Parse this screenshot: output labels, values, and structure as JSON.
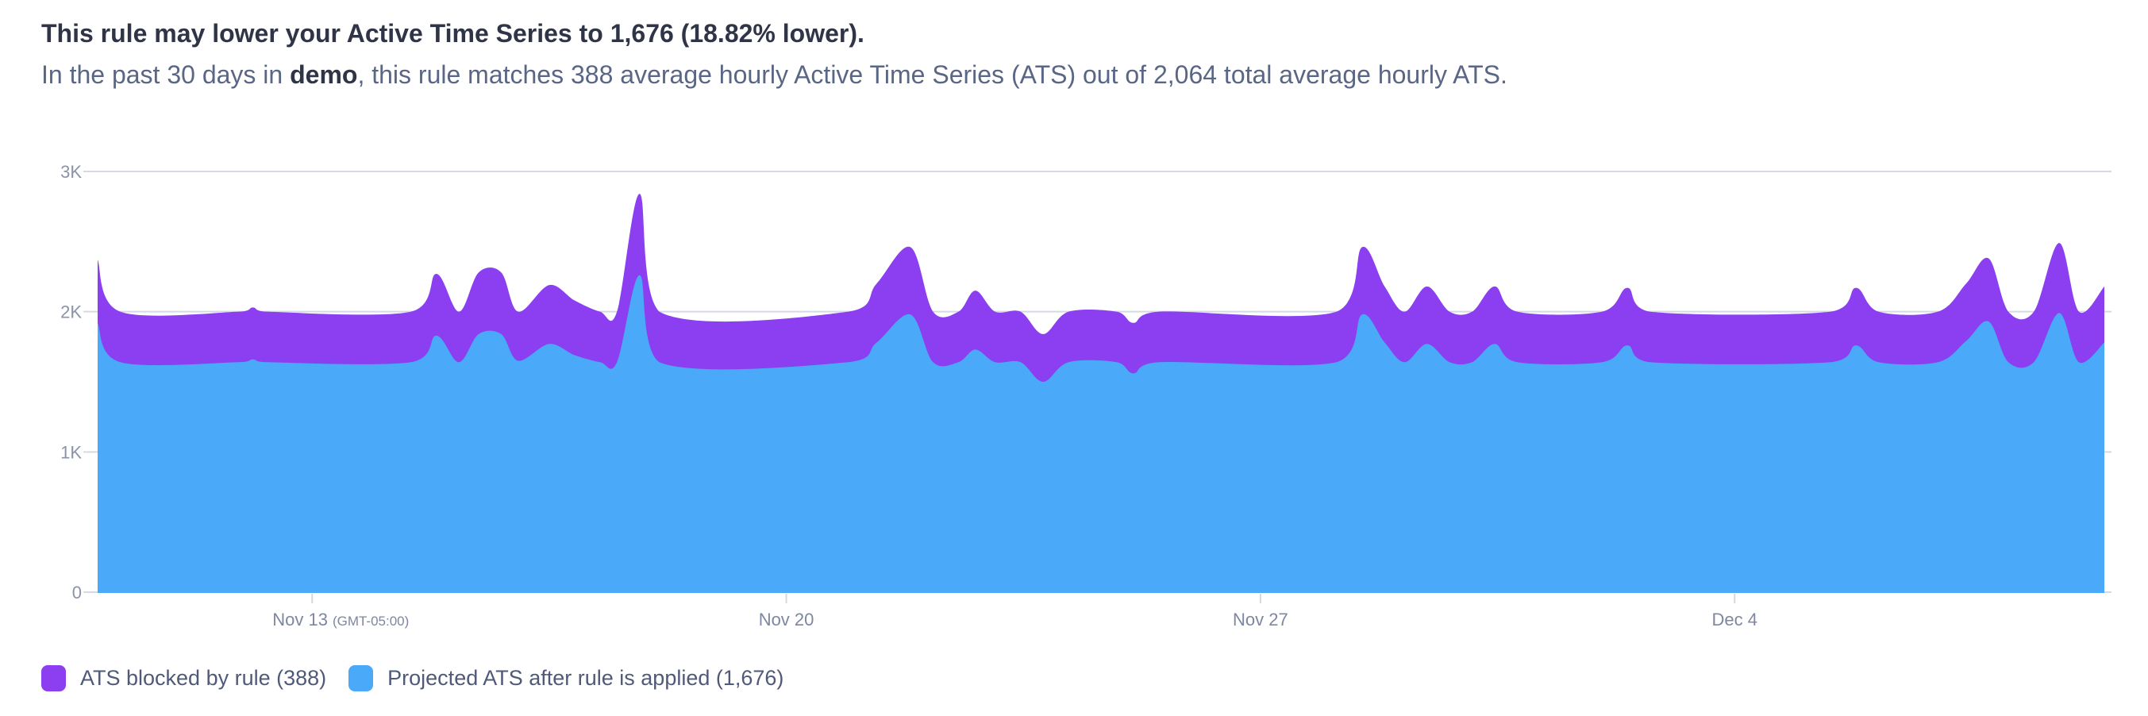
{
  "header": {
    "title": "This rule may lower your Active Time Series to 1,676 (18.82% lower).",
    "subtitle_prefix": "In the past 30 days in ",
    "subtitle_bold": "demo",
    "subtitle_suffix": ", this rule matches 388 average hourly Active Time Series (ATS) out of 2,064 total average hourly ATS."
  },
  "chart_data": {
    "type": "area",
    "stacked": true,
    "title": "",
    "xlabel": "",
    "ylabel": "",
    "ylim": [
      0,
      3000
    ],
    "xlim": [
      "Nov 9 20:00",
      "Dec 9 11:00"
    ],
    "grid": "horizontal",
    "y_ticks": [
      "0",
      "1K",
      "2K",
      "3K"
    ],
    "y_tick_values": [
      0,
      1000,
      2000,
      3000
    ],
    "x_ticks": [
      {
        "label": "Nov 13",
        "suffix": "(GMT-05:00)",
        "at": "Nov 13 00:00"
      },
      {
        "label": "Nov 20",
        "suffix": "",
        "at": "Nov 20 00:00"
      },
      {
        "label": "Nov 27",
        "suffix": "",
        "at": "Nov 27 00:00"
      },
      {
        "label": "Dec 4",
        "suffix": "",
        "at": "Dec 4 00:00"
      }
    ],
    "x": [
      "Nov 9 20:00",
      "Nov 10 04:00",
      "Nov 11 22:00",
      "Nov 12 03:00",
      "Nov 12 08:00",
      "Nov 14 11:00",
      "Nov 14 20:00",
      "Nov 15 04:00",
      "Nov 15 11:00",
      "Nov 15 19:00",
      "Nov 16 01:00",
      "Nov 16 12:00",
      "Nov 16 21:00",
      "Nov 17 06:00",
      "Nov 17 12:00",
      "Nov 17 20:00",
      "Nov 18 03:00",
      "Nov 20 22:00",
      "Nov 21 08:00",
      "Nov 21 20:00",
      "Nov 22 04:00",
      "Nov 22 13:00",
      "Nov 22 19:00",
      "Nov 23 02:00",
      "Nov 23 11:00",
      "Nov 23 19:00",
      "Nov 24 04:00",
      "Nov 24 21:00",
      "Nov 25 03:00",
      "Nov 25 12:00",
      "Nov 28 03:00",
      "Nov 28 12:00",
      "Nov 28 20:00",
      "Nov 29 03:00",
      "Nov 29 11:00",
      "Nov 29 19:00",
      "Nov 30 03:00",
      "Nov 30 11:00",
      "Nov 30 19:00",
      "Dec 2 01:00",
      "Dec 2 10:00",
      "Dec 2 18:00",
      "Dec 5 10:00",
      "Dec 5 19:00",
      "Dec 6 03:00",
      "Dec 7 00:00",
      "Dec 7 10:00",
      "Dec 7 18:00",
      "Dec 8 01:00",
      "Dec 8 10:00",
      "Dec 8 19:00",
      "Dec 9 02:00",
      "Dec 9 11:00"
    ],
    "series": [
      {
        "name": "Projected ATS after rule is applied",
        "legend_label": "Projected ATS after rule is applied (1,676)",
        "color": "#4aa9f8",
        "values": [
          1920,
          1640,
          1640,
          1660,
          1640,
          1640,
          1830,
          1640,
          1840,
          1840,
          1650,
          1770,
          1690,
          1640,
          1640,
          2260,
          1640,
          1640,
          1780,
          1980,
          1640,
          1640,
          1730,
          1640,
          1640,
          1500,
          1640,
          1640,
          1560,
          1640,
          1640,
          1980,
          1780,
          1640,
          1770,
          1640,
          1640,
          1770,
          1640,
          1640,
          1760,
          1640,
          1640,
          1760,
          1640,
          1640,
          1790,
          1930,
          1640,
          1640,
          1990,
          1640,
          1780
        ]
      },
      {
        "name": "ATS blocked by rule",
        "legend_label": "ATS blocked by rule (388)",
        "color": "#8b3ff0",
        "values": [
          450,
          360,
          360,
          370,
          360,
          360,
          440,
          360,
          440,
          440,
          350,
          420,
          390,
          360,
          360,
          580,
          360,
          360,
          420,
          480,
          360,
          360,
          420,
          360,
          360,
          340,
          360,
          360,
          360,
          360,
          360,
          480,
          400,
          360,
          410,
          360,
          360,
          410,
          360,
          360,
          410,
          360,
          360,
          410,
          360,
          360,
          410,
          450,
          360,
          360,
          500,
          360,
          400
        ]
      }
    ]
  },
  "legend": {
    "items": [
      {
        "label": "ATS blocked by rule (388)",
        "color": "#8b3ff0"
      },
      {
        "label": "Projected ATS after rule is applied (1,676)",
        "color": "#4aa9f8"
      }
    ]
  }
}
